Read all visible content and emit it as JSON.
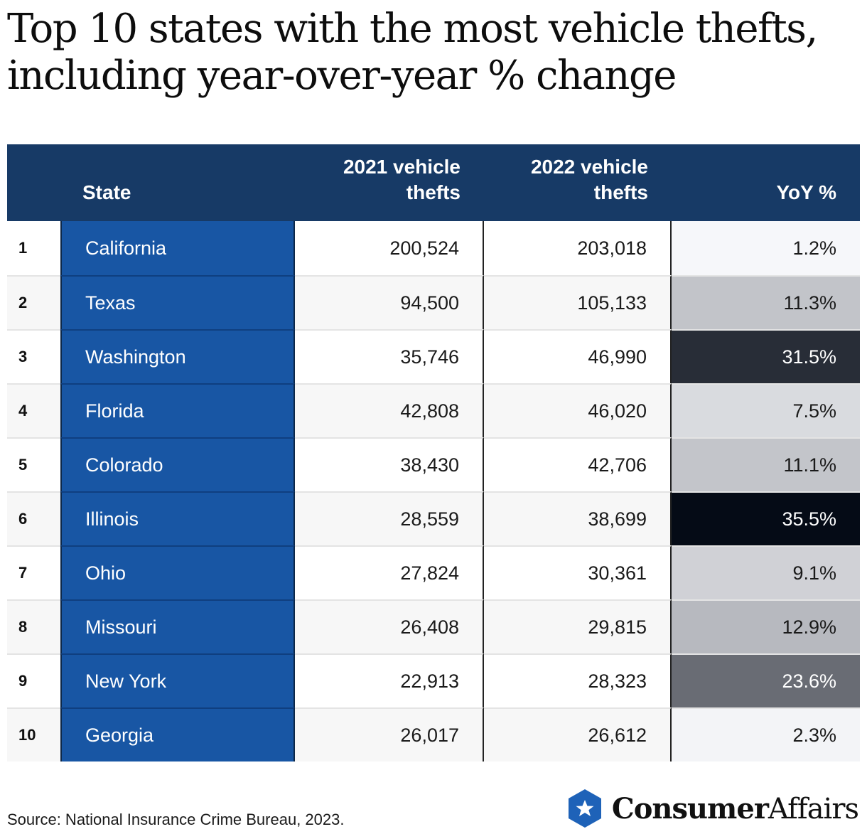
{
  "title": {
    "line1": "Top 10 states with the most vehicle thefts,",
    "line2": "including year-over-year % change"
  },
  "chart_data": {
    "type": "table",
    "columns": [
      "",
      "State",
      "2021 vehicle thefts",
      "2022 vehicle thefts",
      "YoY %"
    ],
    "header": {
      "state": "State",
      "y2021_line1": "2021 vehicle",
      "y2021_line2": "thefts",
      "y2022_line1": "2022 vehicle",
      "y2022_line2": "thefts",
      "yoy": "YoY %"
    },
    "rows": [
      {
        "rank": "1",
        "state": "California",
        "v2021": "200,524",
        "v2022": "203,018",
        "yoy": "1.2%",
        "yoy_value": 1.2
      },
      {
        "rank": "2",
        "state": "Texas",
        "v2021": "94,500",
        "v2022": "105,133",
        "yoy": "11.3%",
        "yoy_value": 11.3
      },
      {
        "rank": "3",
        "state": "Washington",
        "v2021": "35,746",
        "v2022": "46,990",
        "yoy": "31.5%",
        "yoy_value": 31.5
      },
      {
        "rank": "4",
        "state": "Florida",
        "v2021": "42,808",
        "v2022": "46,020",
        "yoy": "7.5%",
        "yoy_value": 7.5
      },
      {
        "rank": "5",
        "state": "Colorado",
        "v2021": "38,430",
        "v2022": "42,706",
        "yoy": "11.1%",
        "yoy_value": 11.1
      },
      {
        "rank": "6",
        "state": "Illinois",
        "v2021": "28,559",
        "v2022": "38,699",
        "yoy": "35.5%",
        "yoy_value": 35.5
      },
      {
        "rank": "7",
        "state": "Ohio",
        "v2021": "27,824",
        "v2022": "30,361",
        "yoy": "9.1%",
        "yoy_value": 9.1
      },
      {
        "rank": "8",
        "state": "Missouri",
        "v2021": "26,408",
        "v2022": "29,815",
        "yoy": "12.9%",
        "yoy_value": 12.9
      },
      {
        "rank": "9",
        "state": "New York",
        "v2021": "22,913",
        "v2022": "28,323",
        "yoy": "23.6%",
        "yoy_value": 23.6
      },
      {
        "rank": "10",
        "state": "Georgia",
        "v2021": "26,017",
        "v2022": "26,612",
        "yoy": "2.3%",
        "yoy_value": 2.3
      }
    ]
  },
  "colors": {
    "header_bg": "#173a66",
    "state_column": "#1856a4",
    "heat_low": "#f6f7fa",
    "heat_high": "#050b16"
  },
  "source": "Source: National Insurance Crime Bureau, 2023.",
  "brand": {
    "part1": "Consumer",
    "part2": "Affairs",
    "icon": "star-hexagon-icon"
  }
}
